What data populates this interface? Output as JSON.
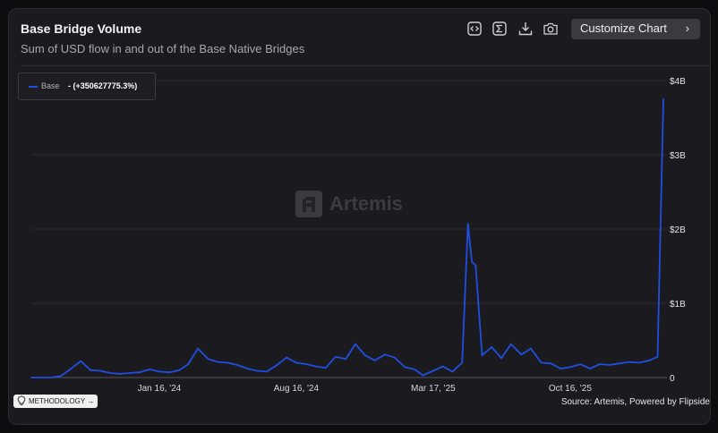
{
  "header": {
    "title": "Base Bridge Volume",
    "subtitle": "Sum of USD flow in and out of the Base Native Bridges",
    "customize_label": "Customize Chart"
  },
  "toolbar": {
    "icons": [
      "embed-icon",
      "sum-icon",
      "download-icon",
      "camera-icon"
    ]
  },
  "legend": {
    "series_name": "Base",
    "change": "- (+350627775.3%)",
    "color": "#1f4fe0"
  },
  "watermark": "Artemis",
  "footer": {
    "methodology_label": "METHODOLOGY",
    "source": "Source: Artemis, Powered by Flipside"
  },
  "chart_data": {
    "type": "line",
    "title": "Base Bridge Volume",
    "ylabel": "",
    "xlabel": "",
    "y_unit": "USD",
    "ylim": [
      0,
      4000000000
    ],
    "y_ticks": [
      "0",
      "$1B",
      "$2B",
      "$3B",
      "$4B"
    ],
    "x_ticks": [
      "Jan 16, '24",
      "Aug 16, '24",
      "Mar 17, '25",
      "Oct 16, '25"
    ],
    "grid": "horizontal",
    "legend_position": "top-left",
    "series": [
      {
        "name": "Base",
        "color": "#1f4fe0",
        "x": [
          "2023-07-01",
          "2023-07-16",
          "2023-08-01",
          "2023-08-16",
          "2023-09-01",
          "2023-09-16",
          "2023-10-01",
          "2023-10-16",
          "2023-11-01",
          "2023-11-16",
          "2023-12-01",
          "2023-12-16",
          "2024-01-01",
          "2024-01-16",
          "2024-02-01",
          "2024-02-16",
          "2024-03-01",
          "2024-03-16",
          "2024-04-01",
          "2024-04-16",
          "2024-05-01",
          "2024-05-16",
          "2024-06-01",
          "2024-06-16",
          "2024-07-01",
          "2024-07-16",
          "2024-08-01",
          "2024-08-16",
          "2024-09-01",
          "2024-09-16",
          "2024-10-01",
          "2024-10-16",
          "2024-11-01",
          "2024-11-16",
          "2024-12-01",
          "2024-12-16",
          "2025-01-01",
          "2025-01-16",
          "2025-02-01",
          "2025-02-16",
          "2025-03-01",
          "2025-03-17",
          "2025-04-01",
          "2025-04-16",
          "2025-05-01",
          "2025-05-10",
          "2025-05-16",
          "2025-05-22",
          "2025-06-01",
          "2025-06-16",
          "2025-07-01",
          "2025-07-16",
          "2025-08-01",
          "2025-08-16",
          "2025-09-01",
          "2025-09-16",
          "2025-10-01",
          "2025-10-16",
          "2025-11-01",
          "2025-11-16",
          "2025-12-01",
          "2025-12-16",
          "2026-01-01",
          "2026-01-16",
          "2026-02-01",
          "2026-02-16",
          "2026-03-01",
          "2026-03-10"
        ],
        "values": [
          0,
          0,
          0,
          20000000,
          120000000,
          220000000,
          100000000,
          90000000,
          60000000,
          50000000,
          60000000,
          70000000,
          110000000,
          80000000,
          70000000,
          100000000,
          180000000,
          390000000,
          250000000,
          210000000,
          200000000,
          170000000,
          120000000,
          90000000,
          80000000,
          160000000,
          270000000,
          200000000,
          180000000,
          150000000,
          130000000,
          280000000,
          250000000,
          450000000,
          300000000,
          230000000,
          310000000,
          270000000,
          140000000,
          110000000,
          30000000,
          90000000,
          150000000,
          80000000,
          200000000,
          2070000000,
          1560000000,
          1510000000,
          300000000,
          410000000,
          260000000,
          450000000,
          310000000,
          390000000,
          200000000,
          190000000,
          120000000,
          140000000,
          180000000,
          120000000,
          180000000,
          170000000,
          190000000,
          210000000,
          200000000,
          230000000,
          280000000,
          3750000000
        ]
      }
    ]
  }
}
